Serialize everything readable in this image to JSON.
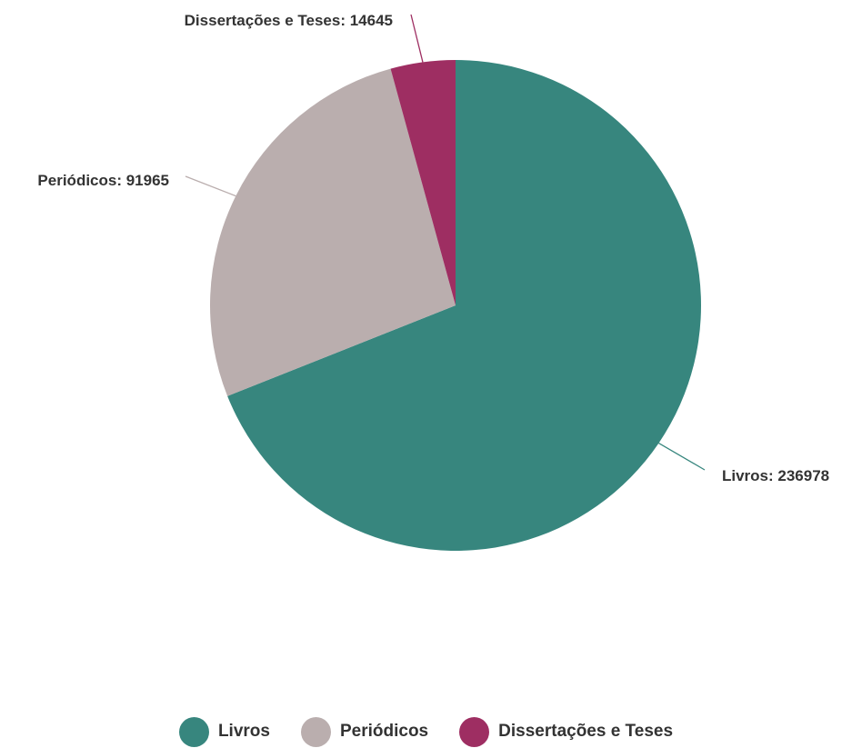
{
  "chart_data": {
    "type": "pie",
    "title": "",
    "slices": [
      {
        "label": "Livros",
        "value": 236978,
        "color": "#37867e",
        "data_label": "Livros: 236978"
      },
      {
        "label": "Periódicos",
        "value": 91965,
        "color": "#baaeae",
        "data_label": "Periódicos: 91965"
      },
      {
        "label": "Dissertações e Teses",
        "value": 14645,
        "color": "#9e2e62",
        "data_label": "Dissertações e Teses: 14645"
      }
    ],
    "legend_position": "bottom",
    "label_style": "outside-with-leader-lines"
  },
  "legend": {
    "items": [
      {
        "label": "Livros",
        "color": "#37867e"
      },
      {
        "label": "Periódicos",
        "color": "#baaeae"
      },
      {
        "label": "Dissertações e Teses",
        "color": "#9e2e62"
      }
    ]
  }
}
